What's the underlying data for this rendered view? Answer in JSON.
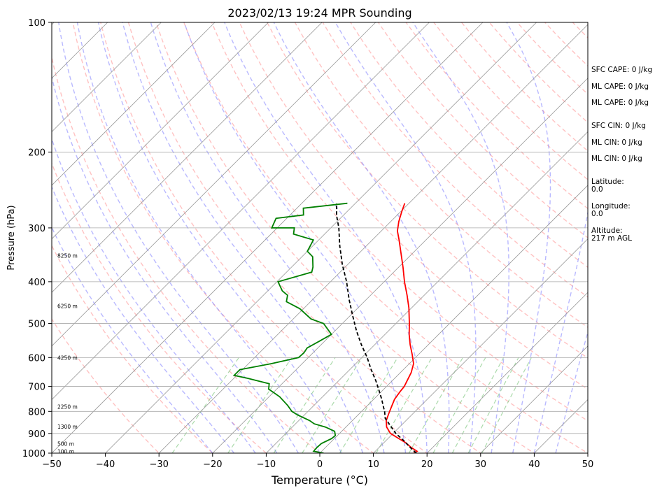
{
  "chart_data": {
    "type": "line",
    "title": "2023/02/13 19:24 MPR Sounding",
    "xlabel": "Temperature (°C)",
    "ylabel": "Pressure (hPa)",
    "xlim": [
      -50,
      50
    ],
    "ylim": [
      1000,
      100
    ],
    "y_scale": "log",
    "skew": "skew-T",
    "grid": true,
    "x_ticks": [
      -50,
      -40,
      -30,
      -20,
      -10,
      0,
      10,
      20,
      30,
      40,
      50
    ],
    "y_ticks": [
      100,
      200,
      300,
      400,
      500,
      600,
      700,
      800,
      900,
      1000
    ],
    "altitude_labels": [
      {
        "p": 348,
        "label": "8250 m"
      },
      {
        "p": 455,
        "label": "6250 m"
      },
      {
        "p": 600,
        "label": "4250 m"
      },
      {
        "p": 780,
        "label": "2250 m"
      },
      {
        "p": 868,
        "label": "1300 m"
      },
      {
        "p": 950,
        "label": "500 m"
      },
      {
        "p": 990,
        "label": "100 m"
      }
    ],
    "series": [
      {
        "name": "",
        "color": "#ff0000",
        "points": [
          [
            17.5,
            1000
          ],
          [
            17.8,
            990
          ],
          [
            16.0,
            970
          ],
          [
            14.0,
            945
          ],
          [
            12.0,
            925
          ],
          [
            9.5,
            900
          ],
          [
            7.6,
            870
          ],
          [
            6.3,
            840
          ],
          [
            5.5,
            810
          ],
          [
            4.7,
            780
          ],
          [
            3.9,
            750
          ],
          [
            3.5,
            720
          ],
          [
            3.3,
            700
          ],
          [
            2.8,
            680
          ],
          [
            2.0,
            650
          ],
          [
            0.8,
            620
          ],
          [
            -1.2,
            590
          ],
          [
            -3.4,
            560
          ],
          [
            -5.5,
            530
          ],
          [
            -7.5,
            500
          ],
          [
            -10.5,
            460
          ],
          [
            -13.2,
            430
          ],
          [
            -16.2,
            400
          ],
          [
            -19.2,
            370
          ],
          [
            -22.0,
            345
          ],
          [
            -25.0,
            320
          ],
          [
            -27.0,
            305
          ],
          [
            -28.5,
            290
          ],
          [
            -29.8,
            275
          ],
          [
            -30.8,
            263
          ]
        ]
      },
      {
        "name": "",
        "color": "#008000",
        "points": [
          [
            0.7,
            1000
          ],
          [
            -1.5,
            990
          ],
          [
            -1.6,
            970
          ],
          [
            -1.5,
            950
          ],
          [
            -0.5,
            925
          ],
          [
            -0.4,
            910
          ],
          [
            -1.3,
            890
          ],
          [
            -3.8,
            870
          ],
          [
            -6.5,
            855
          ],
          [
            -8.0,
            840
          ],
          [
            -11.3,
            815
          ],
          [
            -13.0,
            800
          ],
          [
            -14.9,
            775
          ],
          [
            -18.0,
            740
          ],
          [
            -21.5,
            710
          ],
          [
            -22.4,
            690
          ],
          [
            -27.5,
            670
          ],
          [
            -30.5,
            660
          ],
          [
            -30.5,
            640
          ],
          [
            -25.8,
            620
          ],
          [
            -21.8,
            600
          ],
          [
            -21.7,
            585
          ],
          [
            -22.0,
            570
          ],
          [
            -21.0,
            550
          ],
          [
            -20.0,
            530
          ],
          [
            -23.5,
            500
          ],
          [
            -26.7,
            488
          ],
          [
            -30.7,
            462
          ],
          [
            -34.5,
            445
          ],
          [
            -35.5,
            430
          ],
          [
            -37.3,
            420
          ],
          [
            -39.8,
            400
          ],
          [
            -35.3,
            380
          ],
          [
            -36.0,
            370
          ],
          [
            -38.0,
            350
          ],
          [
            -40.0,
            340
          ],
          [
            -41.0,
            320
          ],
          [
            -45.8,
            310
          ],
          [
            -46.8,
            300
          ],
          [
            -51.0,
            300
          ],
          [
            -52.0,
            285
          ],
          [
            -47.5,
            280
          ],
          [
            -48.8,
            270
          ],
          [
            -41.5,
            263
          ]
        ]
      },
      {
        "name": "",
        "color": "#000000",
        "dash": "dashed",
        "points": [
          [
            18.0,
            1000
          ],
          [
            15.8,
            970
          ],
          [
            13.3,
            935
          ],
          [
            10.5,
            900
          ],
          [
            7.8,
            860
          ],
          [
            5.7,
            830
          ],
          [
            4.3,
            800
          ],
          [
            2.9,
            775
          ],
          [
            1.5,
            750
          ],
          [
            -1.0,
            710
          ],
          [
            -3.0,
            680
          ],
          [
            -6.0,
            640
          ],
          [
            -9.0,
            600
          ],
          [
            -12.5,
            560
          ],
          [
            -16.0,
            520
          ],
          [
            -19.5,
            480
          ],
          [
            -23.2,
            440
          ],
          [
            -27.0,
            400
          ],
          [
            -31.0,
            365
          ],
          [
            -35.0,
            330
          ],
          [
            -38.5,
            300
          ],
          [
            -41.2,
            281
          ],
          [
            -43.5,
            263
          ]
        ]
      }
    ],
    "background_lines": {
      "dry_adiabats_color": "#ff9999",
      "moist_adiabats_color": "#8080ff",
      "mixing_ratio_color": "#66bb66",
      "isotherm_color": "#999999"
    }
  },
  "info_panel": {
    "sfc_cape": "SFC CAPE: 0 J/kg",
    "ml_cape_1": "ML CAPE: 0 J/kg",
    "ml_cape_2": "ML CAPE: 0 J/kg",
    "sfc_cin": "SFC CIN: 0 J/kg",
    "ml_cin_1": "ML CIN: 0 J/kg",
    "ml_cin_2": "ML CIN: 0 J/kg",
    "latitude_label": "Latitude:",
    "latitude_value": "0.0",
    "longitude_label": "Longitude:",
    "longitude_value": "0.0",
    "altitude_label": "Altitude:",
    "altitude_value": "217 m AGL"
  }
}
